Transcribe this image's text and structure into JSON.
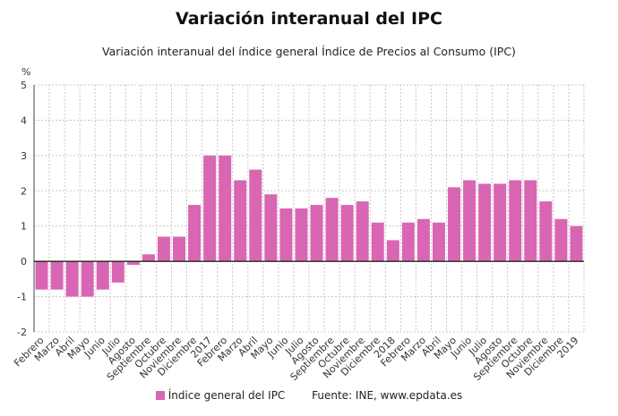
{
  "colors": {
    "bar": "#d966b3",
    "grid": "#c8c8c8",
    "axis": "#444444"
  },
  "chart_data": {
    "type": "bar",
    "title": "Variación interanual del IPC",
    "subtitle": "Variación interanual del índice general Índice de Precios al Consumo (IPC)",
    "ylabel": "%",
    "ylim": [
      -2,
      5
    ],
    "yticks": [
      "-2",
      "-1",
      "0",
      "1",
      "2",
      "3",
      "4",
      "5"
    ],
    "grid": true,
    "legend_position": "bottom",
    "categories": [
      "Febrero",
      "Marzo",
      "Abril",
      "Mayo",
      "Junio",
      "Julio",
      "Agosto",
      "Septiembre",
      "Octubre",
      "Noviembre",
      "Diciembre",
      "2017",
      "Febrero",
      "Marzo",
      "Abril",
      "Mayo",
      "Junio",
      "Julio",
      "Agosto",
      "Septiembre",
      "Octubre",
      "Noviembre",
      "Diciembre",
      "2018",
      "Febrero",
      "Marzo",
      "Abril",
      "Mayo",
      "Junio",
      "Julio",
      "Agosto",
      "Septiembre",
      "Octubre",
      "Noviembre",
      "Diciembre",
      "2019"
    ],
    "series": [
      {
        "name": "Índice general del IPC",
        "values": [
          -0.8,
          -0.8,
          -1.0,
          -1.0,
          -0.8,
          -0.6,
          -0.1,
          0.2,
          0.7,
          0.7,
          1.6,
          3.0,
          3.0,
          2.3,
          2.6,
          1.9,
          1.5,
          1.5,
          1.6,
          1.8,
          1.6,
          1.7,
          1.1,
          0.6,
          1.1,
          1.2,
          1.1,
          2.1,
          2.3,
          2.2,
          2.2,
          2.3,
          2.3,
          1.7,
          1.2,
          1.0
        ]
      }
    ]
  },
  "footer": {
    "legend_label": "Índice general del IPC",
    "source": "Fuente: INE, www.epdata.es"
  }
}
